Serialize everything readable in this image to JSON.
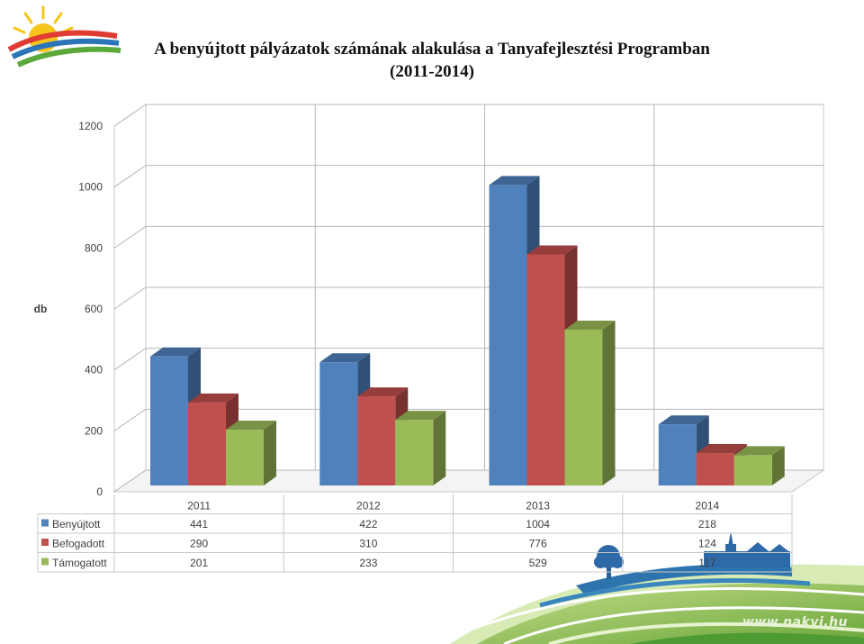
{
  "slide": {
    "title_line1": "A benyújtott pályázatok számának alakulása a Tanyafejlesztési Programban",
    "title_line2": "(2011-2014)",
    "watermark": "www.nakvi.hu"
  },
  "chart_data": {
    "type": "bar",
    "style": "3d-clustered-column",
    "title": "",
    "ylabel": "db",
    "xlabel": "",
    "ylim": [
      0,
      1200
    ],
    "yticks": [
      0,
      200,
      400,
      600,
      800,
      1000,
      1200
    ],
    "grid": true,
    "legend": "data-table",
    "categories": [
      "2011",
      "2012",
      "2013",
      "2014"
    ],
    "series": [
      {
        "name": "Benyújtott",
        "values": [
          441,
          422,
          1004,
          218
        ],
        "color": "#4F81BD"
      },
      {
        "name": "Befogadott",
        "values": [
          290,
          310,
          776,
          124
        ],
        "color": "#C0504D"
      },
      {
        "name": "Támogatott",
        "values": [
          201,
          233,
          529,
          117
        ],
        "color": "#9BBB59"
      }
    ]
  }
}
